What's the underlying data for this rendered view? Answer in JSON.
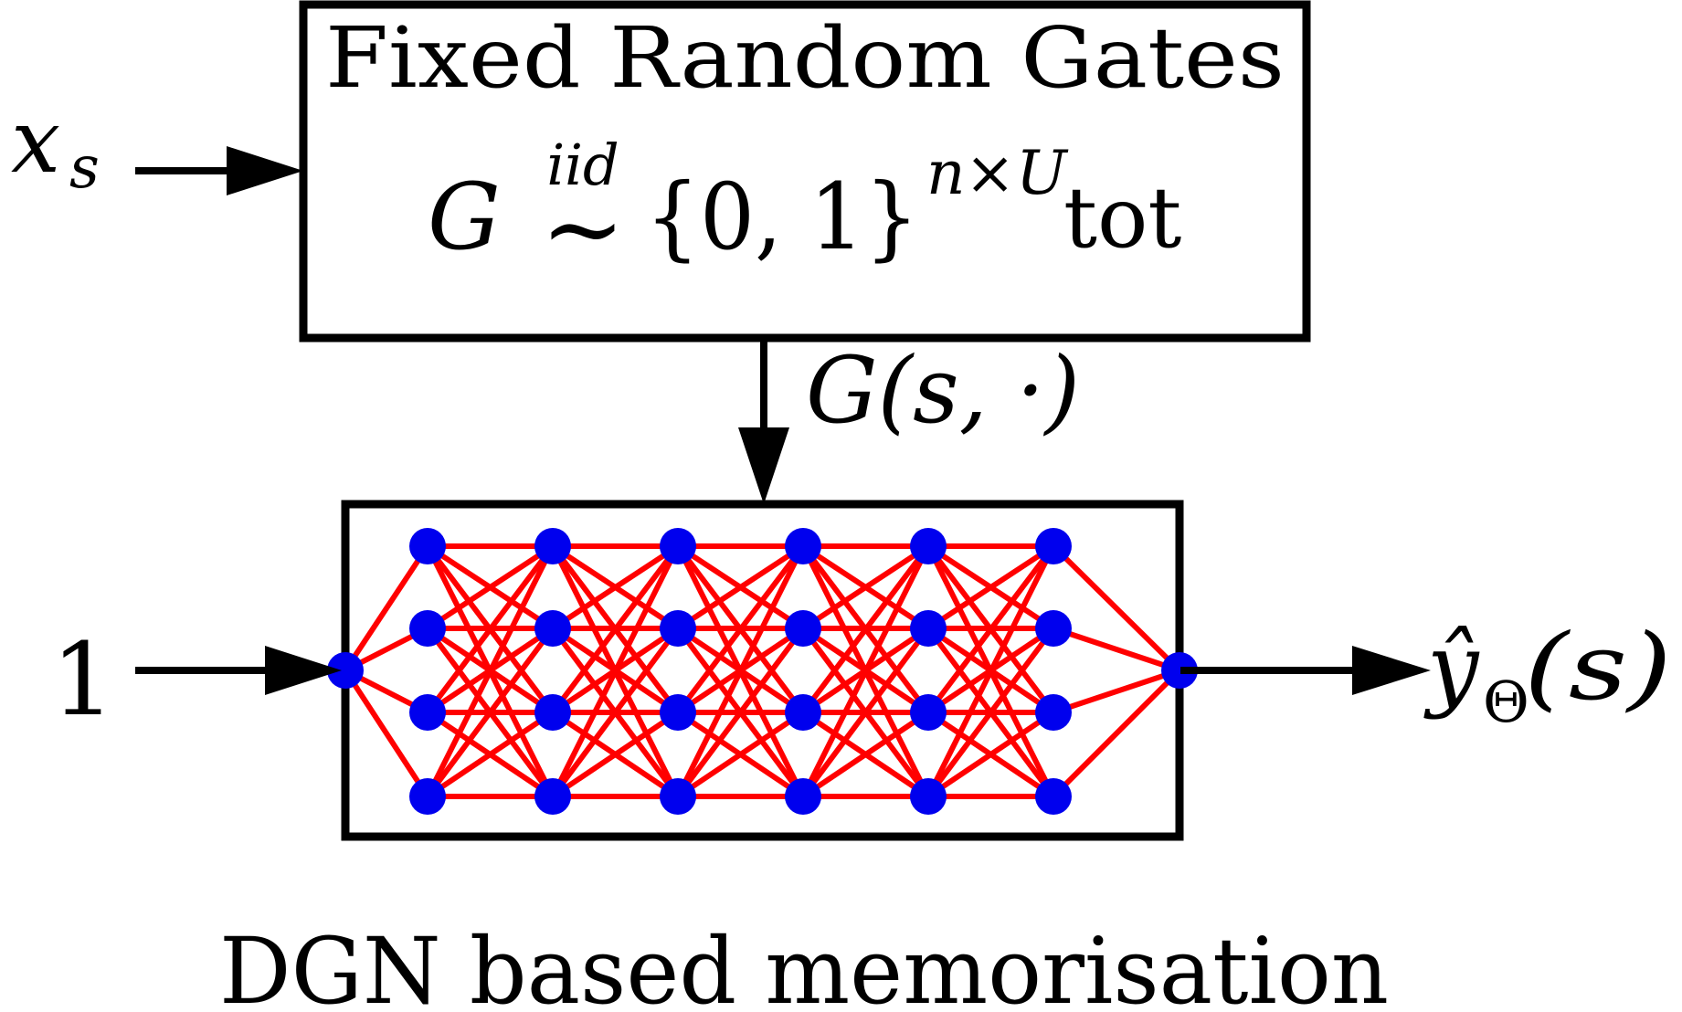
{
  "gates_box": {
    "title": "Fixed Random Gates",
    "formula": {
      "lhs": "G",
      "relation_over": "iid",
      "relation": "~",
      "set": "{0, 1}",
      "exp_n": "n",
      "exp_times": "×",
      "exp_U": "U",
      "exp_sub": "tot"
    }
  },
  "input_top": {
    "var": "x",
    "sub": "s"
  },
  "gate_signal": "G(s, ·)",
  "input_left": "1",
  "output": {
    "var": "ŷ",
    "sub": "Θ",
    "arg": "(s)"
  },
  "caption": "DGN based memorisation",
  "network": {
    "input_nodes": 1,
    "hidden_layers": 6,
    "nodes_per_layer": 4,
    "output_nodes": 1,
    "node_color": "#0000ee",
    "edge_color": "#ff0000"
  },
  "colors": {
    "stroke": "#000000",
    "background": "#ffffff"
  }
}
